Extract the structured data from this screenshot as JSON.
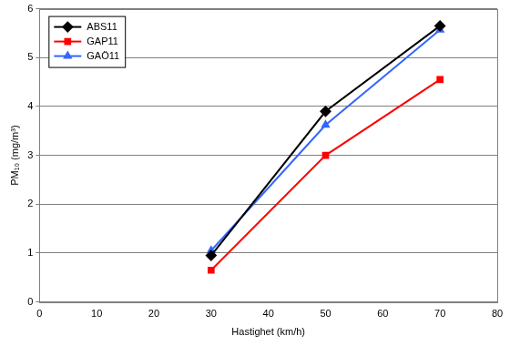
{
  "chart_data": {
    "type": "line",
    "x_label": "Hastighet (km/h)",
    "y_label": "PM₁₀ (mg/m³)",
    "x": [
      30,
      50,
      70
    ],
    "series": [
      {
        "name": "ABS11",
        "color": "#000000",
        "marker": "diamond",
        "line_style": "solid",
        "values": [
          0.95,
          3.9,
          5.65
        ]
      },
      {
        "name": "GAP11",
        "color": "#ff0000",
        "marker": "square",
        "line_style": "solid",
        "values": [
          0.65,
          3.0,
          4.55
        ]
      },
      {
        "name": "GAÖ11",
        "color": "#3366ff",
        "marker": "triangle",
        "line_style": "solid",
        "values": [
          1.05,
          3.62,
          5.57
        ]
      }
    ],
    "xlim": [
      0,
      80
    ],
    "xticks": [
      0,
      10,
      20,
      30,
      40,
      50,
      60,
      70,
      80
    ],
    "ylim": [
      0,
      6
    ],
    "yticks": [
      0,
      1,
      2,
      3,
      4,
      5,
      6
    ],
    "grid": "y",
    "legend": "top-left"
  }
}
